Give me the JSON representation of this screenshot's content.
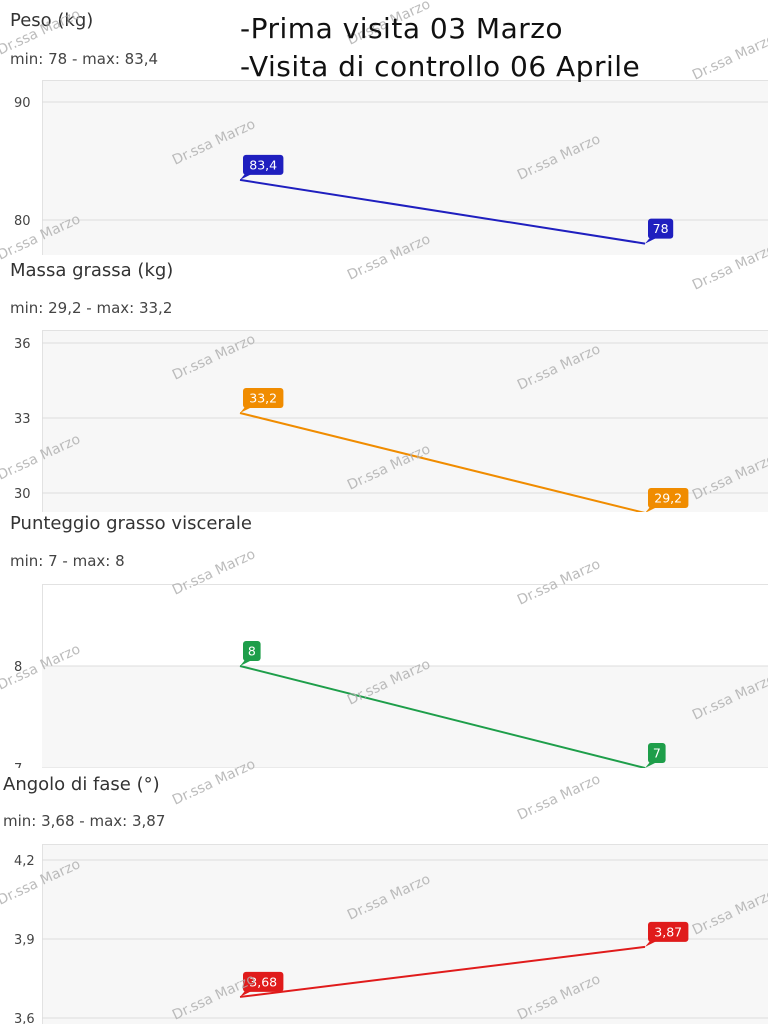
{
  "notes": [
    "-Prima visita 03 Marzo",
    "-Visita di controllo 06 Aprile"
  ],
  "watermark": "Dr.ssa Marzo",
  "colors": {
    "peso": "#1f1fbf",
    "massa": "#f08c00",
    "visceral": "#1e9e4a",
    "angolo": "#e01b1b",
    "grid": "#dcdcdc",
    "plot_bg": "#f7f7f7"
  },
  "chart_data": [
    {
      "type": "line",
      "title": "Peso (kg)",
      "range_label": "min: 78 - max: 83,4",
      "x": [
        "03 Marzo",
        "06 Aprile"
      ],
      "series": [
        {
          "values": [
            83.4,
            78
          ],
          "labels": [
            "83,4",
            "78"
          ]
        }
      ],
      "yticks": [
        80,
        90
      ],
      "ytick_labels": [
        "80",
        "90"
      ],
      "ylim": [
        78,
        92
      ],
      "grid": true
    },
    {
      "type": "line",
      "title": "Massa grassa (kg)",
      "range_label": "min: 29,2 - max: 33,2",
      "x": [
        "03 Marzo",
        "06 Aprile"
      ],
      "series": [
        {
          "values": [
            33.2,
            29.2
          ],
          "labels": [
            "33,2",
            "29,2"
          ]
        }
      ],
      "yticks": [
        30,
        33,
        36
      ],
      "ytick_labels": [
        "30",
        "33",
        "36"
      ],
      "ylim": [
        29.3,
        36.5
      ],
      "grid": true
    },
    {
      "type": "line",
      "title": "Punteggio grasso viscerale",
      "range_label": "min: 7 - max: 8",
      "x": [
        "03 Marzo",
        "06 Aprile"
      ],
      "series": [
        {
          "values": [
            8,
            7
          ],
          "labels": [
            "8",
            "7"
          ]
        }
      ],
      "yticks": [
        7,
        8
      ],
      "ytick_labels": [
        "7",
        "8"
      ],
      "ylim": [
        7,
        9.02
      ],
      "grid": true
    },
    {
      "type": "line",
      "title": "Angolo di fase (°)",
      "range_label": "min: 3,68 - max: 3,87",
      "x": [
        "03 Marzo",
        "06 Aprile"
      ],
      "series": [
        {
          "values": [
            3.68,
            3.87
          ],
          "labels": [
            "3,68",
            "3,87"
          ]
        }
      ],
      "yticks": [
        3.6,
        3.9,
        4.2
      ],
      "ytick_labels": [
        "3,6",
        "3,9",
        "4,2"
      ],
      "ylim": [
        3.6,
        4.24
      ],
      "grid": true
    }
  ]
}
